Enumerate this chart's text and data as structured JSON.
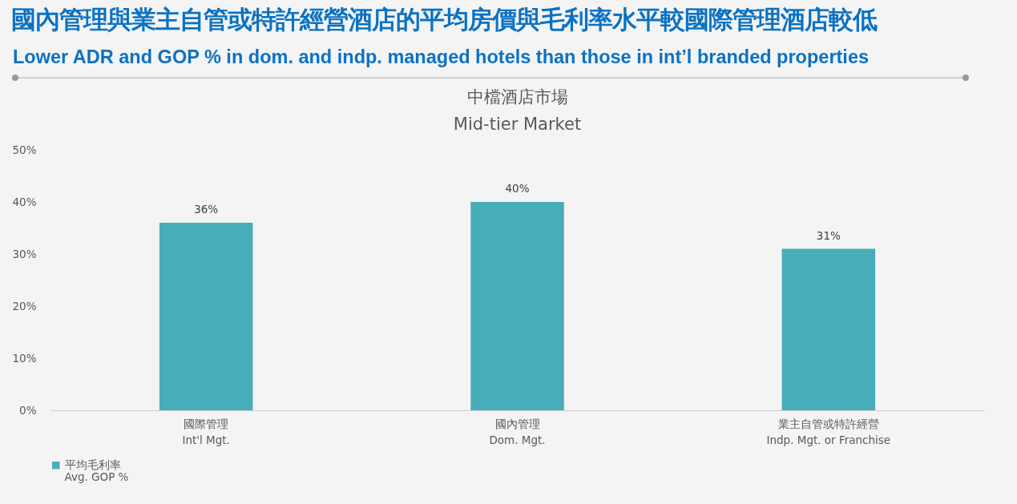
{
  "chart_data": {
    "type": "bar",
    "title": "國內管理與業主自管或特許經營酒店的平均房價與毛利率水平較國際管理酒店較低",
    "subtitle": "Lower ADR and GOP % in dom. and indp. managed hotels than those in int’l branded properties",
    "annotations": [
      "中檔酒店市場",
      "Mid-tier Market"
    ],
    "categories": [
      "國際管理\nInt'l Mgt.",
      "國內管理\nDom. Mgt.",
      "業主自管或特許經營\nIndp. Mgt. or Franchise"
    ],
    "series": [
      {
        "name": "平均毛利率\nAvg. GOP %",
        "color": "#47adb9",
        "values": [
          36,
          40,
          31
        ],
        "value_labels": [
          "36%",
          "40%",
          "31%"
        ]
      }
    ],
    "ylim": [
      0,
      50
    ],
    "yticks": [
      {
        "value": 0,
        "label": "0%"
      },
      {
        "value": 10,
        "label": "10%"
      },
      {
        "value": 20,
        "label": "20%"
      },
      {
        "value": 30,
        "label": "30%"
      },
      {
        "value": 40,
        "label": "40%"
      },
      {
        "value": 50,
        "label": "50%"
      }
    ],
    "grid": false,
    "legend": "bottom"
  }
}
